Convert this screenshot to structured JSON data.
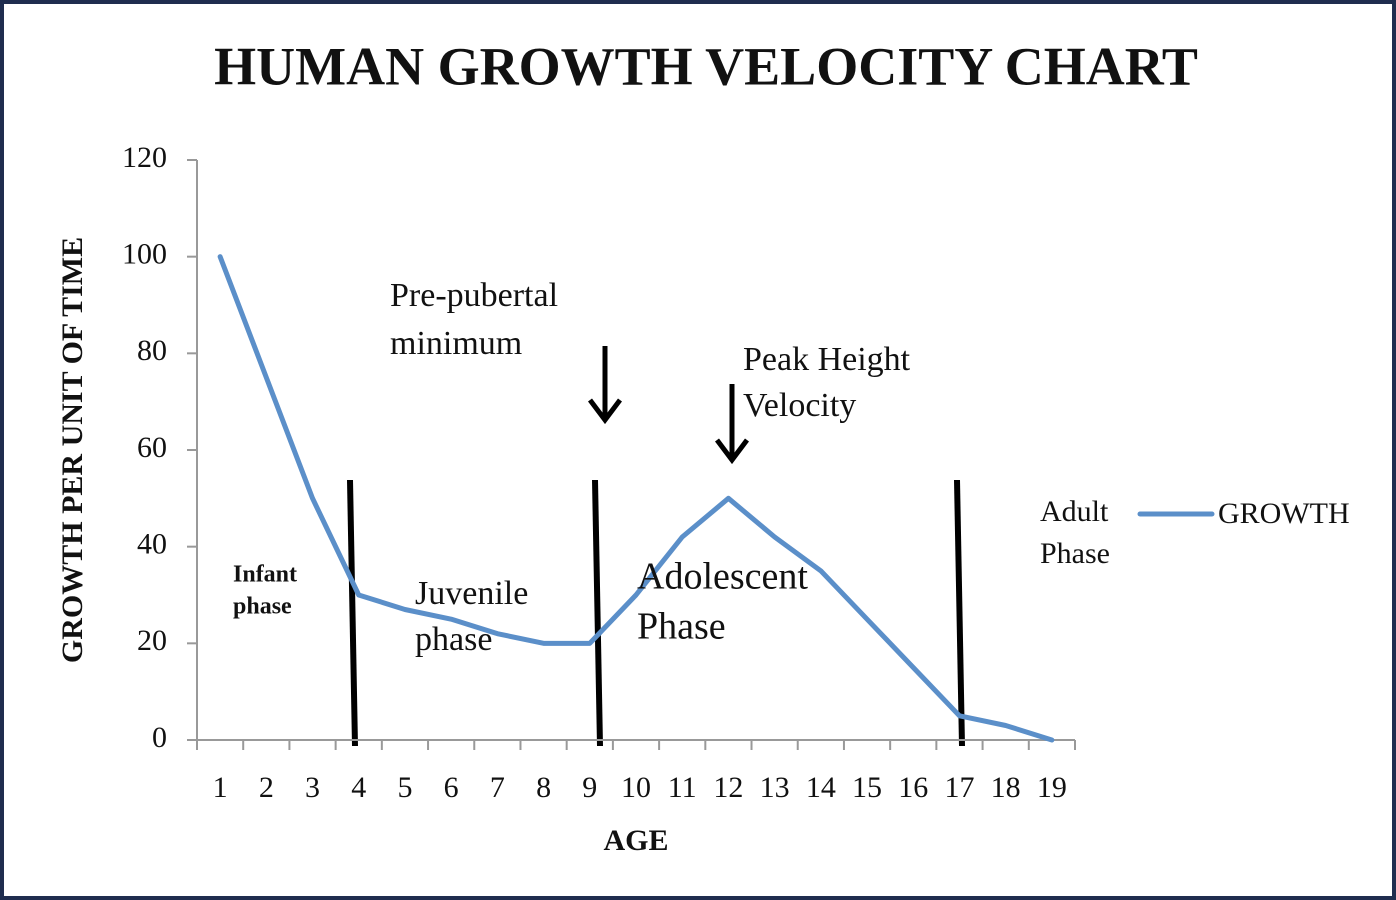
{
  "chart_data": {
    "type": "line",
    "title": "HUMAN GROWTH VELOCITY CHART",
    "x_label": "AGE",
    "y_label": "GROWTH PER UNIT OF TIME",
    "categories": [
      "1",
      "2",
      "3",
      "4",
      "5",
      "6",
      "7",
      "8",
      "9",
      "10",
      "11",
      "12",
      "13",
      "14",
      "15",
      "16",
      "17",
      "18",
      "19"
    ],
    "series": [
      {
        "name": "GROWTH",
        "color": "#5b8fc9",
        "values": [
          100,
          75,
          50,
          30,
          27,
          25,
          22,
          20,
          20,
          30,
          42,
          50,
          42,
          35,
          25,
          15,
          5,
          3,
          0
        ]
      }
    ],
    "ylim": [
      0,
      120
    ],
    "yticks": [
      0,
      20,
      40,
      60,
      80,
      100,
      120
    ],
    "legend": "right",
    "annotations": [
      {
        "lines": [
          "Infant",
          "phase"
        ]
      },
      {
        "lines": [
          "Juvenile",
          "phase"
        ]
      },
      {
        "lines": [
          "Adolescent",
          "Phase"
        ]
      },
      {
        "lines": [
          "Adult",
          "Phase"
        ]
      },
      {
        "lines": [
          "Pre-pubertal",
          "minimum"
        ]
      },
      {
        "lines": [
          "Peak Height",
          "Velocity"
        ]
      }
    ]
  }
}
